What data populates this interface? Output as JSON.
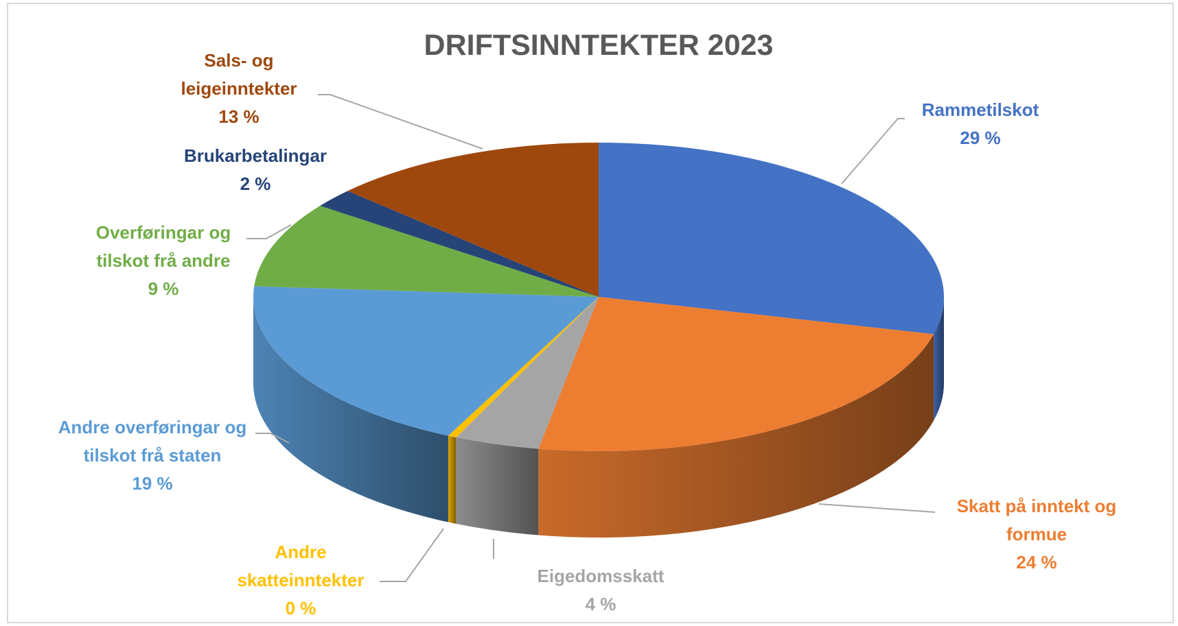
{
  "chart_data": {
    "type": "pie3d",
    "title": "DRIFTSINNTEKTER 2023",
    "categories": [
      "Rammetilskot",
      "Skatt på inntekt og formue",
      "Eigedomsskatt",
      "Andre skatteinntekter",
      "Andre overføringar og tilskot frå staten",
      "Overføringar og tilskot frå andre",
      "Brukarbetalingar",
      "Sals- og leigeinntekter"
    ],
    "values": [
      29,
      24,
      4,
      0.4,
      19,
      9,
      2,
      13
    ],
    "value_labels": [
      "29 %",
      "24 %",
      "4 %",
      "0 %",
      "19 %",
      "9 %",
      "2 %",
      "13 %"
    ],
    "colors": [
      "#4472c4",
      "#ed7d31",
      "#a5a5a5",
      "#ffc000",
      "#5b9bd5",
      "#70ad47",
      "#264478",
      "#9e480e"
    ]
  }
}
